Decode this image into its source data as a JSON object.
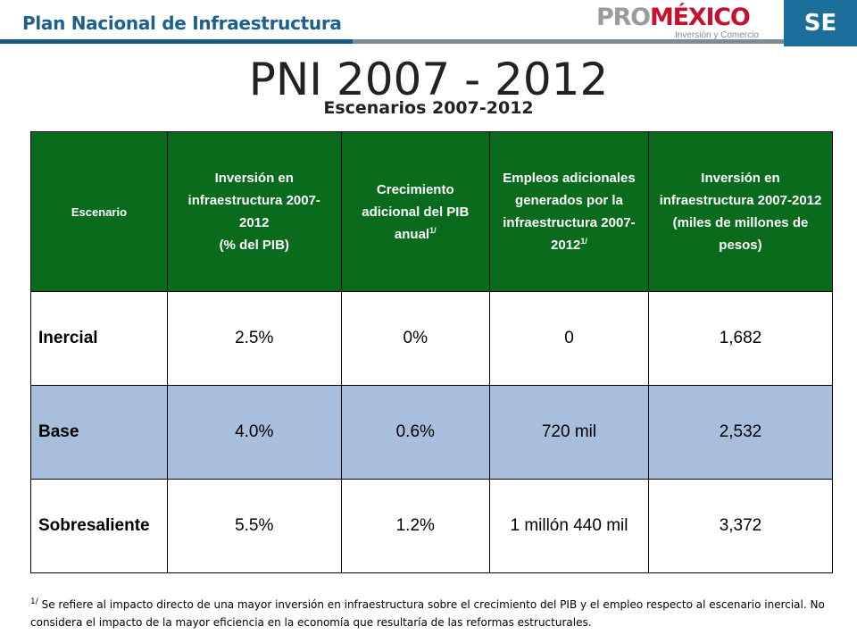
{
  "header": {
    "title": "Plan Nacional de Infraestructura",
    "logo_pro": "PRO",
    "logo_mexico": "MÉXICO",
    "logo_tagline": "Inversión y Comercio",
    "se_label": "SE"
  },
  "slide": {
    "title": "PNI 2007 - 2012",
    "subtitle": "Escenarios 2007-2012"
  },
  "table": {
    "headers": [
      {
        "line1": "Escenario"
      },
      {
        "line1": "Inversión en infraestructura 2007-2012",
        "line2": "(% del PIB)"
      },
      {
        "line1": "Crecimiento adicional del PIB anual",
        "sup": "1/"
      },
      {
        "line1": "Empleos adicionales generados por la infraestructura 2007-2012",
        "sup": "1/"
      },
      {
        "line1": "Inversión en infraestructura 2007-2012 (miles de millones de pesos)"
      }
    ],
    "rows": [
      {
        "scenario": "Inercial",
        "pib_pct": "2.5%",
        "growth": "0%",
        "jobs": "0",
        "investment": "1,682"
      },
      {
        "scenario": "Base",
        "pib_pct": "4.0%",
        "growth": "0.6%",
        "jobs": "720 mil",
        "investment": "2,532"
      },
      {
        "scenario": "Sobresaliente",
        "pib_pct": "5.5%",
        "growth": "1.2%",
        "jobs": "1 millón 440 mil",
        "investment": "3,372"
      }
    ]
  },
  "footnote": {
    "marker": "1/",
    "text": " Se refiere al impacto directo de una mayor inversión en infraestructura sobre el crecimiento del PIB y el empleo respecto al escenario inercial. No considera el impacto de la mayor eficiencia en la economía que resultaría de las reformas estructurales."
  },
  "colors": {
    "header_green": "#0a6b1d",
    "row_blue": "#a7bfdd",
    "header_title_blue": "#1f5f8b",
    "se_blue": "#1b6f9a"
  }
}
